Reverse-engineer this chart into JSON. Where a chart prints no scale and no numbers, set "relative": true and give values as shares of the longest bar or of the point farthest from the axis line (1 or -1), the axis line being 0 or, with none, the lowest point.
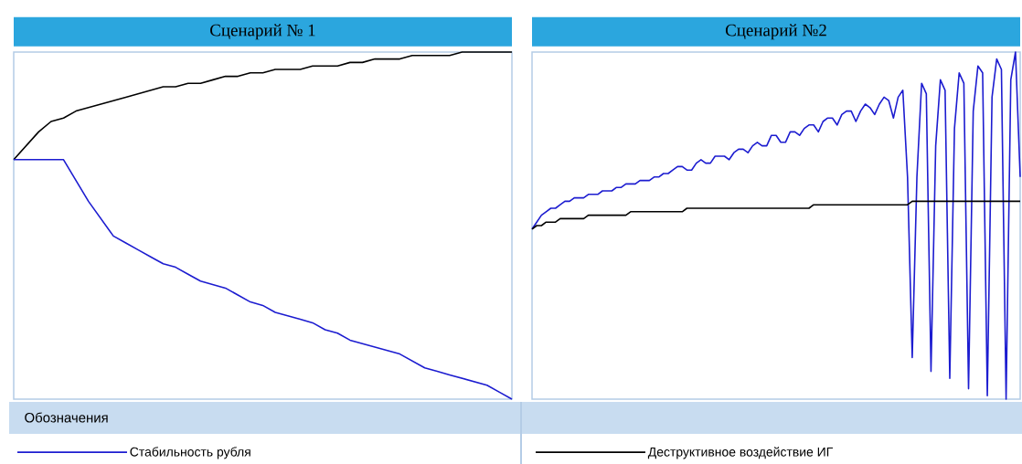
{
  "chart_data": [
    {
      "type": "line",
      "title": "Сценарий № 1",
      "legend_title": "Обозначения",
      "relative": true,
      "legend": "bottom left",
      "categories": [
        null,
        null,
        null,
        null,
        null,
        null,
        null,
        null,
        null,
        null,
        null,
        null,
        null,
        null,
        null,
        null,
        null,
        null,
        null,
        null,
        null,
        null,
        null,
        null,
        null,
        null,
        null,
        null,
        null,
        null,
        null,
        null,
        null,
        null,
        null,
        null,
        null,
        null,
        null,
        null,
        null
      ],
      "series": [
        {
          "color": "#000000",
          "values": [
            0.69,
            0.73,
            0.77,
            0.8,
            0.81,
            0.83,
            0.84,
            0.85,
            0.86,
            0.87,
            0.88,
            0.89,
            0.9,
            0.9,
            0.91,
            0.91,
            0.92,
            0.93,
            0.93,
            0.94,
            0.94,
            0.95,
            0.95,
            0.95,
            0.96,
            0.96,
            0.96,
            0.97,
            0.97,
            0.98,
            0.98,
            0.98,
            0.99,
            0.99,
            0.99,
            0.99,
            1,
            1,
            1,
            1,
            1
          ]
        },
        {
          "name": "Стабильность рубля",
          "color": "#1c1cd0",
          "values": [
            0.69,
            0.69,
            0.69,
            0.69,
            0.69,
            0.63,
            0.57,
            0.52,
            0.47,
            0.45,
            0.43,
            0.41,
            0.39,
            0.38,
            0.36,
            0.34,
            0.33,
            0.32,
            0.3,
            0.28,
            0.27,
            0.25,
            0.24,
            0.23,
            0.22,
            0.2,
            0.19,
            0.17,
            0.16,
            0.15,
            0.14,
            0.13,
            0.11,
            0.09,
            0.08,
            0.07,
            0.06,
            0.05,
            0.04,
            0.02,
            0
          ]
        }
      ]
    },
    {
      "type": "line",
      "title": "Сценарий №2",
      "relative": true,
      "legend": "bottom left",
      "categories": [
        null,
        null,
        null,
        null,
        null,
        null,
        null,
        null,
        null,
        null,
        null,
        null,
        null,
        null,
        null,
        null,
        null,
        null,
        null,
        null,
        null,
        null,
        null,
        null,
        null,
        null,
        null,
        null,
        null,
        null,
        null,
        null,
        null,
        null,
        null,
        null,
        null,
        null,
        null,
        null,
        null,
        null,
        null,
        null,
        null,
        null,
        null,
        null,
        null,
        null,
        null,
        null,
        null,
        null,
        null,
        null,
        null,
        null,
        null,
        null,
        null,
        null,
        null,
        null,
        null,
        null,
        null,
        null,
        null,
        null,
        null,
        null,
        null,
        null,
        null,
        null,
        null,
        null,
        null,
        null,
        null,
        null,
        null,
        null,
        null,
        null,
        null,
        null,
        null,
        null,
        null,
        null,
        null,
        null,
        null,
        null,
        null,
        null,
        null,
        null,
        null,
        null,
        null,
        null,
        null
      ],
      "series": [
        {
          "color": "#1c1cd0",
          "values": [
            0.49,
            0.51,
            0.53,
            0.54,
            0.55,
            0.55,
            0.56,
            0.57,
            0.57,
            0.58,
            0.58,
            0.58,
            0.59,
            0.59,
            0.59,
            0.6,
            0.6,
            0.6,
            0.61,
            0.61,
            0.62,
            0.62,
            0.62,
            0.63,
            0.63,
            0.63,
            0.64,
            0.64,
            0.65,
            0.65,
            0.66,
            0.67,
            0.67,
            0.66,
            0.66,
            0.68,
            0.69,
            0.68,
            0.68,
            0.7,
            0.7,
            0.7,
            0.69,
            0.71,
            0.72,
            0.72,
            0.71,
            0.73,
            0.74,
            0.73,
            0.73,
            0.76,
            0.76,
            0.74,
            0.74,
            0.77,
            0.77,
            0.76,
            0.78,
            0.79,
            0.79,
            0.77,
            0.8,
            0.81,
            0.81,
            0.79,
            0.82,
            0.83,
            0.83,
            0.8,
            0.83,
            0.85,
            0.84,
            0.82,
            0.85,
            0.87,
            0.86,
            0.81,
            0.87,
            0.89,
            0.64,
            0.12,
            0.64,
            0.91,
            0.88,
            0.08,
            0.73,
            0.92,
            0.89,
            0.06,
            0.78,
            0.94,
            0.91,
            0.03,
            0.83,
            0.96,
            0.94,
            0.01,
            0.87,
            0.98,
            0.95,
            0,
            0.92,
            1,
            0.64
          ]
        },
        {
          "name": "Деструктивное воздействие ИГ",
          "color": "#000000",
          "values": [
            0.49,
            0.5,
            0.5,
            0.51,
            0.51,
            0.51,
            0.52,
            0.52,
            0.52,
            0.52,
            0.52,
            0.52,
            0.53,
            0.53,
            0.53,
            0.53,
            0.53,
            0.53,
            0.53,
            0.53,
            0.53,
            0.54,
            0.54,
            0.54,
            0.54,
            0.54,
            0.54,
            0.54,
            0.54,
            0.54,
            0.54,
            0.54,
            0.54,
            0.55,
            0.55,
            0.55,
            0.55,
            0.55,
            0.55,
            0.55,
            0.55,
            0.55,
            0.55,
            0.55,
            0.55,
            0.55,
            0.55,
            0.55,
            0.55,
            0.55,
            0.55,
            0.55,
            0.55,
            0.55,
            0.55,
            0.55,
            0.55,
            0.55,
            0.55,
            0.55,
            0.56,
            0.56,
            0.56,
            0.56,
            0.56,
            0.56,
            0.56,
            0.56,
            0.56,
            0.56,
            0.56,
            0.56,
            0.56,
            0.56,
            0.56,
            0.56,
            0.56,
            0.56,
            0.56,
            0.56,
            0.56,
            0.57,
            0.57,
            0.57,
            0.57,
            0.57,
            0.57,
            0.57,
            0.57,
            0.57,
            0.57,
            0.57,
            0.57,
            0.57,
            0.57,
            0.57,
            0.57,
            0.57,
            0.57,
            0.57,
            0.57,
            0.57,
            0.57,
            0.57,
            0.57
          ]
        }
      ]
    }
  ]
}
